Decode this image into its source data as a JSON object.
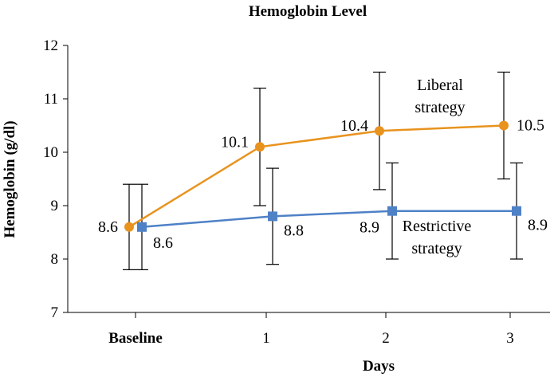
{
  "chart_data": {
    "type": "line",
    "title": "Hemoglobin Level",
    "xlabel": "Days",
    "ylabel": "Hemoglobin (g/dl)",
    "categories": [
      "Baseline",
      "1",
      "2",
      "3"
    ],
    "ylim": [
      7,
      12
    ],
    "yticks": [
      7,
      8,
      9,
      10,
      11,
      12
    ],
    "grid": false,
    "legend": "none",
    "series": [
      {
        "name": "Liberal strategy",
        "label_lines": [
          "Liberal",
          "strategy"
        ],
        "color": "#E8931E",
        "marker": "circle",
        "values": [
          8.6,
          10.1,
          10.4,
          10.5
        ],
        "labels": [
          "8.6",
          "10.1",
          "10.4",
          "10.5"
        ],
        "error_low": [
          7.8,
          9.0,
          9.3,
          9.5
        ],
        "error_high": [
          9.4,
          11.2,
          11.5,
          11.5
        ]
      },
      {
        "name": "Restrictive strategy",
        "label_lines": [
          "Restrictive",
          "strategy"
        ],
        "color": "#4F81C7",
        "marker": "square",
        "values": [
          8.6,
          8.8,
          8.9,
          8.9
        ],
        "labels": [
          "8.6",
          "8.8",
          "8.9",
          "8.9"
        ],
        "error_low": [
          7.8,
          7.9,
          8.0,
          8.0
        ],
        "error_high": [
          9.4,
          9.7,
          9.8,
          9.8
        ]
      }
    ]
  }
}
